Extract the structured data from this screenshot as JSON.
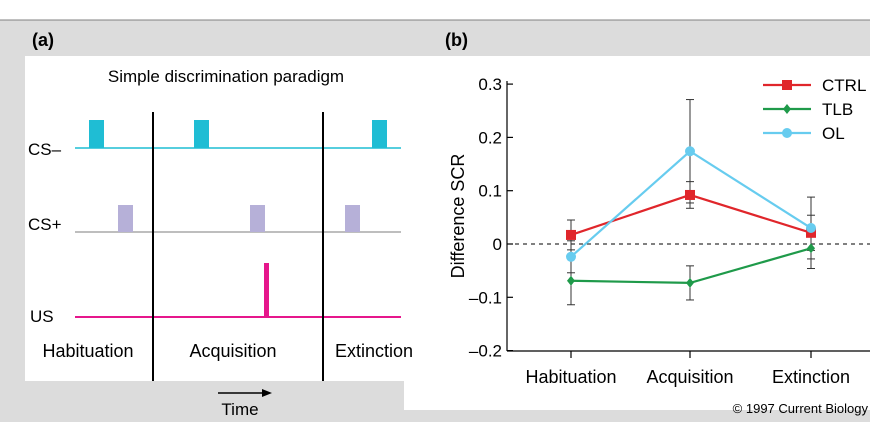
{
  "panel_a": {
    "label": "(a)",
    "title": "Simple discrimination paradigm",
    "rows": {
      "cs_minus": "CS–",
      "cs_plus": "CS+",
      "us": "US"
    },
    "phases": [
      "Habituation",
      "Acquisition",
      "Extinction"
    ],
    "time_label": "Time",
    "colors": {
      "cs_minus": "#1fbdd4",
      "cs_plus": "#b6b0d8",
      "us": "#e6168c"
    }
  },
  "panel_b": {
    "label": "(b)"
  },
  "copyright": "© 1997 Current Biology",
  "chart_data": {
    "type": "line",
    "categories": [
      "Habituation",
      "Acquisition",
      "Extinction"
    ],
    "ylabel": "Difference SCR",
    "ylim": [
      -0.2,
      0.3
    ],
    "yticks": [
      "0.3",
      "0.2",
      "0.1",
      "0",
      "–0.1",
      "–0.2"
    ],
    "ytick_values": [
      0.3,
      0.2,
      0.1,
      0,
      -0.1,
      -0.2
    ],
    "zero_line": "dashed",
    "legend_position": "top-right",
    "series": [
      {
        "name": "CTRL",
        "color": "#e0262b",
        "marker": "square",
        "values": [
          0.017,
          0.092,
          0.021
        ],
        "err": [
          0.028,
          0.025,
          0.033
        ]
      },
      {
        "name": "TLB",
        "color": "#1f9a4a",
        "marker": "diamond",
        "values": [
          -0.069,
          -0.073,
          -0.008
        ],
        "err": [
          0.045,
          0.032,
          0.038
        ]
      },
      {
        "name": "OL",
        "color": "#67ccef",
        "marker": "circle",
        "values": [
          -0.024,
          0.174,
          0.03
        ],
        "err": [
          0.03,
          0.097,
          0.058
        ]
      }
    ]
  }
}
